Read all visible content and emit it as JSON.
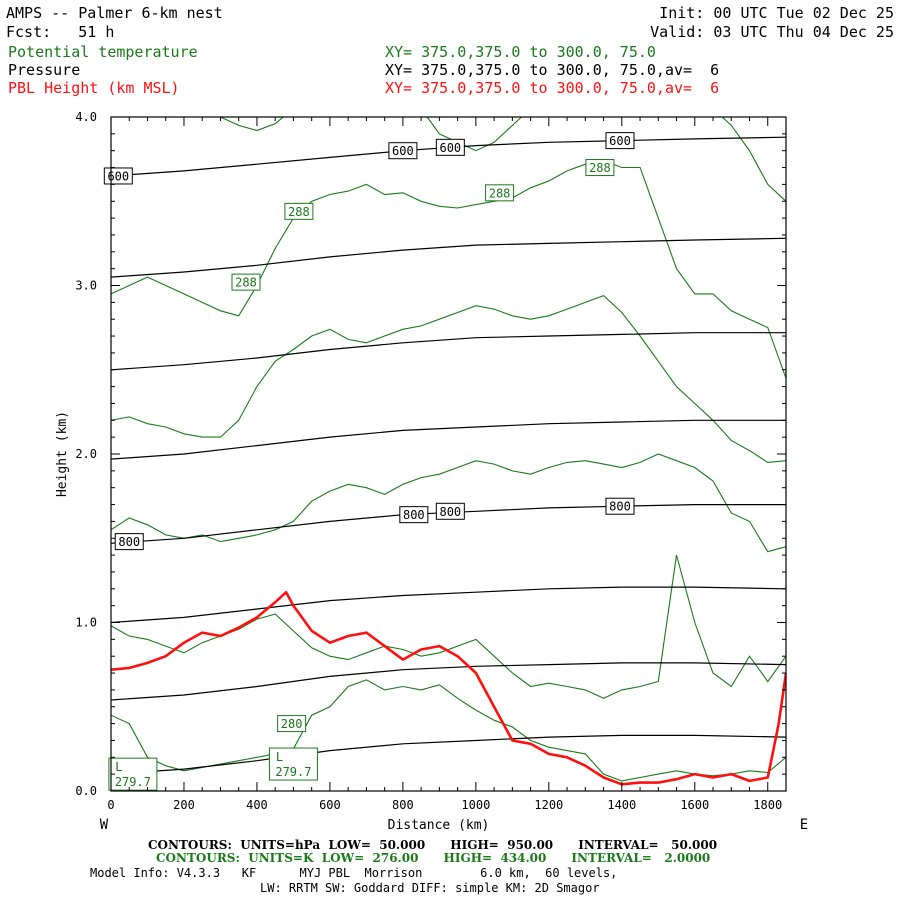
{
  "header": {
    "title": "AMPS -- Palmer 6-km nest",
    "fcst_label": "Fcst:",
    "fcst_value": "51 h",
    "init": "Init: 00 UTC Tue 02 Dec 25",
    "valid": "Valid: 03 UTC Thu 04 Dec 25"
  },
  "fields": [
    {
      "name": "Potential temperature",
      "xy": "XY= 375.0,375.0 to 300.0, 75.0",
      "color": "#1a7a1a"
    },
    {
      "name": "Pressure",
      "xy": "XY= 375.0,375.0 to 300.0, 75.0,av=  6",
      "color": "#000000"
    },
    {
      "name": "PBL Height (km MSL)",
      "xy": "XY= 375.0,375.0 to 300.0, 75.0,av=  6",
      "color": "#ff1010"
    }
  ],
  "footer": {
    "contours_p": "CONTOURS:  UNITS=hPa  LOW=  50.000      HIGH=  950.00      INTERVAL=   50.000",
    "contours_t": "CONTOURS:  UNITS=K  LOW=  276.00      HIGH=  434.00      INTERVAL=   2.0000",
    "model_info": "Model Info: V4.3.3   KF      MYJ PBL  Morrison        6.0 km,  60 levels,",
    "physics": "LW: RRTM SW: Goddard DIFF: simple KM: 2D Smagor"
  },
  "chart_data": {
    "type": "line",
    "title": "AMPS -- Palmer 6-km nest",
    "xlabel": "Distance (km)",
    "ylabel": "Height (km)",
    "xlim": [
      0,
      1850
    ],
    "ylim": [
      0,
      4.0
    ],
    "x_ticks": [
      0,
      200,
      400,
      600,
      800,
      1000,
      1200,
      1400,
      1600,
      1800
    ],
    "y_ticks": [
      "0.0",
      "1.0",
      "2.0",
      "3.0",
      "4.0"
    ],
    "y_tick_values": [
      0,
      1,
      2,
      3,
      4
    ],
    "left_end_label": "W",
    "right_end_label": "E",
    "pressure_lines": {
      "name": "Pressure (hPa)",
      "color": "#000000",
      "x": [
        0,
        200,
        400,
        600,
        800,
        1000,
        1200,
        1400,
        1600,
        1850
      ],
      "series": [
        {
          "level": 950,
          "y": [
            0.1,
            0.13,
            0.18,
            0.24,
            0.28,
            0.3,
            0.32,
            0.33,
            0.33,
            0.32
          ]
        },
        {
          "level": 900,
          "y": [
            0.54,
            0.57,
            0.62,
            0.68,
            0.72,
            0.74,
            0.75,
            0.76,
            0.76,
            0.75
          ]
        },
        {
          "level": 850,
          "y": [
            1.0,
            1.03,
            1.08,
            1.13,
            1.16,
            1.18,
            1.2,
            1.21,
            1.21,
            1.2
          ]
        },
        {
          "level": 800,
          "y": [
            1.47,
            1.5,
            1.55,
            1.6,
            1.64,
            1.66,
            1.68,
            1.69,
            1.7,
            1.7
          ]
        },
        {
          "level": 750,
          "y": [
            1.97,
            2.0,
            2.05,
            2.1,
            2.14,
            2.16,
            2.18,
            2.19,
            2.2,
            2.2
          ]
        },
        {
          "level": 700,
          "y": [
            2.5,
            2.53,
            2.57,
            2.62,
            2.66,
            2.69,
            2.7,
            2.71,
            2.72,
            2.72
          ]
        },
        {
          "level": 650,
          "y": [
            3.05,
            3.08,
            3.12,
            3.17,
            3.21,
            3.24,
            3.25,
            3.26,
            3.27,
            3.28
          ]
        },
        {
          "level": 600,
          "y": [
            3.65,
            3.68,
            3.72,
            3.76,
            3.8,
            3.83,
            3.85,
            3.86,
            3.87,
            3.88
          ]
        }
      ],
      "labels": [
        {
          "text": "600",
          "x": 20,
          "y": 3.65
        },
        {
          "text": "600",
          "x": 800,
          "y": 3.8
        },
        {
          "text": "600",
          "x": 930,
          "y": 3.82
        },
        {
          "text": "600",
          "x": 1395,
          "y": 3.86
        },
        {
          "text": "800",
          "x": 50,
          "y": 1.48
        },
        {
          "text": "800",
          "x": 830,
          "y": 1.64
        },
        {
          "text": "800",
          "x": 930,
          "y": 1.66
        },
        {
          "text": "800",
          "x": 1395,
          "y": 1.69
        }
      ]
    },
    "theta_lines": {
      "name": "Potential temperature (K)",
      "color": "#1a7a1a",
      "x": [
        0,
        50,
        100,
        150,
        200,
        250,
        300,
        350,
        400,
        450,
        500,
        550,
        600,
        650,
        700,
        750,
        800,
        850,
        900,
        950,
        1000,
        1050,
        1100,
        1150,
        1200,
        1250,
        1300,
        1350,
        1400,
        1450,
        1500,
        1550,
        1600,
        1650,
        1700,
        1750,
        1800,
        1850
      ],
      "series": [
        {
          "level": 280,
          "y": [
            0.45,
            0.4,
            0.2,
            0.15,
            0.12,
            0.14,
            0.16,
            0.18,
            0.2,
            0.22,
            0.25,
            0.45,
            0.5,
            0.62,
            0.66,
            0.6,
            0.62,
            0.6,
            0.63,
            0.55,
            0.48,
            0.42,
            0.38,
            0.3,
            0.26,
            0.24,
            0.22,
            0.1,
            0.06,
            0.08,
            0.1,
            0.12,
            0.1,
            0.09,
            0.1,
            0.12,
            0.11,
            0.2
          ]
        },
        {
          "level": 282,
          "y": [
            0.98,
            0.92,
            0.9,
            0.86,
            0.82,
            0.88,
            0.92,
            0.96,
            1.02,
            1.05,
            0.95,
            0.85,
            0.8,
            0.78,
            0.82,
            0.86,
            0.84,
            0.8,
            0.82,
            0.86,
            0.9,
            0.8,
            0.7,
            0.62,
            0.64,
            0.62,
            0.6,
            0.55,
            0.6,
            0.62,
            0.65,
            1.4,
            1.0,
            0.7,
            0.62,
            0.8,
            0.65,
            0.8
          ]
        },
        {
          "level": 284,
          "y": [
            1.55,
            1.62,
            1.58,
            1.52,
            1.5,
            1.52,
            1.48,
            1.5,
            1.52,
            1.55,
            1.6,
            1.72,
            1.78,
            1.82,
            1.8,
            1.76,
            1.82,
            1.86,
            1.88,
            1.92,
            1.96,
            1.94,
            1.9,
            1.88,
            1.92,
            1.95,
            1.96,
            1.94,
            1.92,
            1.95,
            2.0,
            1.96,
            1.92,
            1.84,
            1.65,
            1.6,
            1.42,
            1.45
          ]
        },
        {
          "level": 286,
          "y": [
            2.2,
            2.22,
            2.18,
            2.16,
            2.12,
            2.1,
            2.1,
            2.2,
            2.4,
            2.55,
            2.62,
            2.7,
            2.74,
            2.68,
            2.66,
            2.7,
            2.74,
            2.76,
            2.8,
            2.84,
            2.88,
            2.86,
            2.82,
            2.8,
            2.82,
            2.86,
            2.9,
            2.94,
            2.84,
            2.7,
            2.55,
            2.4,
            2.3,
            2.2,
            2.08,
            2.02,
            1.95,
            1.96
          ]
        },
        {
          "level": 288,
          "y": [
            2.95,
            3.0,
            3.05,
            3.0,
            2.95,
            2.9,
            2.85,
            2.82,
            3.0,
            3.22,
            3.4,
            3.5,
            3.54,
            3.56,
            3.6,
            3.54,
            3.55,
            3.5,
            3.47,
            3.46,
            3.48,
            3.5,
            3.52,
            3.58,
            3.62,
            3.68,
            3.72,
            3.74,
            3.7,
            3.7,
            3.4,
            3.1,
            2.95,
            2.95,
            2.85,
            2.8,
            2.75,
            2.45
          ]
        },
        {
          "level": 290,
          "y": [
            4.05,
            4.05,
            4.05,
            4.05,
            4.05,
            4.05,
            4.0,
            3.95,
            3.92,
            3.96,
            4.05,
            4.05,
            4.05,
            4.05,
            4.05,
            4.05,
            4.05,
            4.05,
            3.9,
            3.85,
            3.8,
            3.85,
            3.95,
            4.05,
            4.05,
            4.05,
            4.05,
            4.05,
            4.05,
            4.05,
            4.05,
            4.05,
            4.05,
            4.05,
            3.95,
            3.8,
            3.6,
            3.5
          ]
        }
      ],
      "labels": [
        {
          "text": "288",
          "x": 515,
          "y": 3.44
        },
        {
          "text": "288",
          "x": 370,
          "y": 3.02
        },
        {
          "text": "288",
          "x": 1065,
          "y": 3.55
        },
        {
          "text": "288",
          "x": 1340,
          "y": 3.7
        },
        {
          "text": "280",
          "x": 495,
          "y": 0.4
        }
      ],
      "lows": [
        {
          "marker": "L",
          "value": "279.7",
          "x": 60,
          "y": 0.1
        },
        {
          "marker": "L",
          "value": "279.7",
          "x": 500,
          "y": 0.16
        }
      ]
    },
    "pbl_height": {
      "name": "PBL Height (km MSL)",
      "color": "#ff1010",
      "x": [
        0,
        50,
        100,
        150,
        200,
        250,
        300,
        350,
        400,
        450,
        480,
        500,
        550,
        600,
        650,
        700,
        750,
        800,
        850,
        900,
        950,
        1000,
        1050,
        1100,
        1150,
        1200,
        1250,
        1300,
        1350,
        1400,
        1450,
        1500,
        1550,
        1600,
        1650,
        1700,
        1750,
        1800,
        1830,
        1850
      ],
      "y": [
        0.72,
        0.73,
        0.76,
        0.8,
        0.88,
        0.94,
        0.92,
        0.97,
        1.03,
        1.12,
        1.18,
        1.1,
        0.95,
        0.88,
        0.92,
        0.94,
        0.86,
        0.78,
        0.84,
        0.86,
        0.8,
        0.7,
        0.5,
        0.3,
        0.28,
        0.22,
        0.2,
        0.15,
        0.08,
        0.04,
        0.05,
        0.05,
        0.07,
        0.1,
        0.08,
        0.1,
        0.06,
        0.08,
        0.4,
        0.7
      ]
    }
  }
}
